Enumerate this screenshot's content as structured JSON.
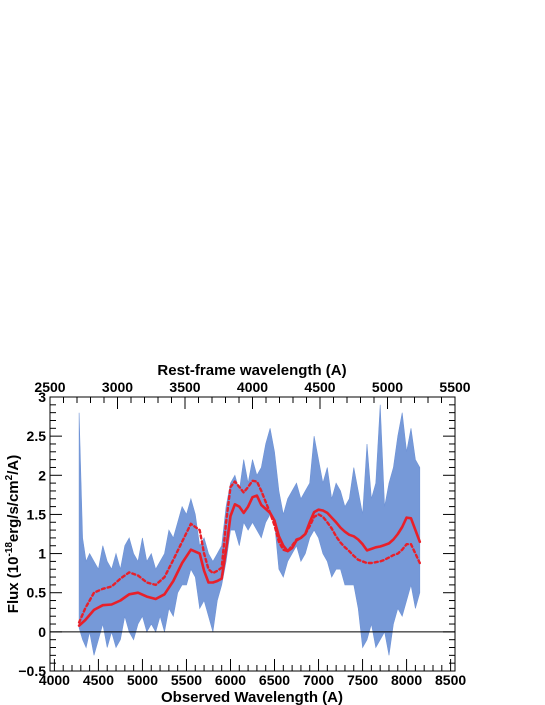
{
  "chart_data": {
    "type": "line",
    "title": "",
    "xlabel": "Observed Wavelength (A)",
    "x2label": "Rest-frame wavelength (A)",
    "ylabel_parts": {
      "main": "Flux (10",
      "exp": "-18",
      "unit": "erg/s/cm",
      "exp2": "2",
      "end": "/A)"
    },
    "xlim": [
      3950,
      8550
    ],
    "x2lim": [
      2500,
      5500
    ],
    "ylim": [
      -0.5,
      3
    ],
    "x_ticks": [
      4000,
      4500,
      5000,
      5500,
      6000,
      6500,
      7000,
      7500,
      8000,
      8500
    ],
    "x2_ticks": [
      2500,
      3000,
      3500,
      4000,
      4500,
      5000,
      5500
    ],
    "y_ticks": [
      -0.5,
      0,
      0.5,
      1,
      1.5,
      2,
      2.5,
      3
    ],
    "y_tick_labels": [
      "−0.5",
      "0",
      "0.5",
      "1",
      "1.5",
      "2",
      "2.5",
      "3"
    ],
    "zero_line": 0,
    "colors": {
      "spectrum": "#6f93d6",
      "model": "#e8202a",
      "axis": "#000000"
    },
    "series": [
      {
        "style": "filled-noisy-band",
        "x": [
          4280,
          4320,
          4360,
          4400,
          4450,
          4500,
          4550,
          4600,
          4650,
          4700,
          4750,
          4800,
          4850,
          4900,
          4950,
          5000,
          5050,
          5100,
          5150,
          5200,
          5250,
          5300,
          5350,
          5400,
          5450,
          5500,
          5550,
          5600,
          5650,
          5700,
          5750,
          5800,
          5850,
          5900,
          5950,
          6000,
          6050,
          6100,
          6150,
          6200,
          6250,
          6300,
          6350,
          6400,
          6450,
          6500,
          6550,
          6600,
          6650,
          6700,
          6750,
          6800,
          6850,
          6900,
          6950,
          7000,
          7050,
          7100,
          7150,
          7200,
          7250,
          7300,
          7350,
          7400,
          7450,
          7500,
          7550,
          7600,
          7650,
          7700,
          7750,
          7800,
          7850,
          7900,
          7950,
          8000,
          8050,
          8100,
          8150
        ],
        "upper": [
          2.8,
          1.2,
          0.9,
          1.0,
          0.9,
          0.8,
          1.1,
          0.9,
          0.8,
          1.0,
          0.8,
          1.1,
          1.2,
          1.0,
          0.9,
          1.2,
          0.9,
          1.0,
          0.8,
          0.9,
          1.0,
          1.3,
          1.2,
          1.4,
          1.6,
          1.5,
          1.7,
          1.5,
          1.1,
          1.2,
          1.0,
          0.9,
          1.0,
          1.1,
          1.6,
          1.9,
          2.0,
          1.8,
          2.2,
          1.9,
          2.2,
          2.0,
          2.1,
          2.4,
          2.6,
          2.3,
          1.8,
          1.5,
          1.7,
          1.8,
          1.9,
          1.7,
          1.8,
          1.9,
          2.5,
          2.2,
          1.9,
          2.1,
          1.7,
          1.9,
          1.8,
          1.6,
          1.7,
          2.1,
          1.8,
          1.5,
          2.4,
          1.7,
          1.9,
          2.9,
          1.6,
          1.9,
          2.1,
          2.5,
          2.8,
          2.3,
          2.6,
          2.2,
          2.1
        ],
        "lower": [
          0.05,
          -0.1,
          -0.2,
          0.0,
          -0.3,
          -0.1,
          0.1,
          -0.2,
          0.0,
          -0.2,
          -0.1,
          0.2,
          0.0,
          -0.1,
          0.1,
          0.2,
          0.0,
          0.1,
          0.0,
          0.2,
          0.0,
          0.3,
          0.2,
          0.5,
          0.6,
          0.6,
          0.8,
          0.7,
          0.3,
          0.4,
          0.2,
          0.0,
          0.4,
          0.6,
          0.9,
          1.3,
          1.3,
          1.1,
          1.4,
          1.3,
          1.4,
          1.3,
          1.2,
          1.4,
          1.5,
          1.4,
          0.8,
          0.7,
          0.9,
          1.0,
          1.1,
          0.9,
          1.0,
          1.2,
          1.3,
          1.2,
          1.0,
          0.9,
          0.7,
          0.8,
          0.8,
          0.6,
          0.6,
          0.6,
          0.3,
          -0.2,
          -0.1,
          0.1,
          -0.2,
          -0.1,
          0.0,
          -0.3,
          0.1,
          0.3,
          0.2,
          0.4,
          0.6,
          0.3,
          0.5
        ]
      },
      {
        "style": "solid",
        "x": [
          4280,
          4350,
          4450,
          4550,
          4650,
          4750,
          4850,
          4950,
          5050,
          5150,
          5250,
          5350,
          5450,
          5550,
          5650,
          5700,
          5750,
          5800,
          5850,
          5900,
          5950,
          6000,
          6050,
          6100,
          6150,
          6200,
          6250,
          6300,
          6350,
          6400,
          6450,
          6500,
          6550,
          6600,
          6650,
          6700,
          6750,
          6800,
          6850,
          6900,
          6950,
          7000,
          7050,
          7100,
          7150,
          7200,
          7250,
          7300,
          7350,
          7400,
          7450,
          7500,
          7550,
          7600,
          7650,
          7700,
          7750,
          7800,
          7850,
          7900,
          7950,
          8000,
          8050,
          8100,
          8150
        ],
        "y": [
          0.08,
          0.15,
          0.28,
          0.34,
          0.35,
          0.4,
          0.48,
          0.5,
          0.45,
          0.42,
          0.48,
          0.65,
          0.88,
          1.05,
          1.0,
          0.78,
          0.63,
          0.63,
          0.65,
          0.68,
          1.05,
          1.48,
          1.63,
          1.6,
          1.52,
          1.6,
          1.72,
          1.74,
          1.62,
          1.57,
          1.52,
          1.42,
          1.22,
          1.1,
          1.03,
          1.07,
          1.17,
          1.2,
          1.25,
          1.4,
          1.53,
          1.56,
          1.55,
          1.52,
          1.46,
          1.4,
          1.33,
          1.28,
          1.24,
          1.22,
          1.18,
          1.12,
          1.04,
          1.06,
          1.08,
          1.09,
          1.11,
          1.13,
          1.18,
          1.25,
          1.34,
          1.46,
          1.45,
          1.3,
          1.15
        ]
      },
      {
        "style": "dotted",
        "x": [
          4280,
          4350,
          4450,
          4550,
          4650,
          4750,
          4850,
          4950,
          5050,
          5150,
          5250,
          5350,
          5450,
          5550,
          5650,
          5700,
          5750,
          5800,
          5850,
          5900,
          5950,
          6000,
          6050,
          6100,
          6150,
          6200,
          6250,
          6300,
          6350,
          6400,
          6450,
          6500,
          6550,
          6600,
          6650,
          6700,
          6750,
          6800,
          6850,
          6900,
          6950,
          7000,
          7050,
          7100,
          7150,
          7200,
          7250,
          7300,
          7350,
          7400,
          7450,
          7500,
          7550,
          7600,
          7650,
          7700,
          7750,
          7800,
          7850,
          7900,
          7950,
          8000,
          8050,
          8100,
          8150
        ],
        "y": [
          0.12,
          0.3,
          0.5,
          0.55,
          0.58,
          0.68,
          0.76,
          0.72,
          0.63,
          0.6,
          0.7,
          0.92,
          1.15,
          1.38,
          1.3,
          1.0,
          0.8,
          0.75,
          0.78,
          0.82,
          1.4,
          1.85,
          1.92,
          1.85,
          1.78,
          1.85,
          1.93,
          1.92,
          1.8,
          1.66,
          1.52,
          1.36,
          1.15,
          1.05,
          1.03,
          1.1,
          1.18,
          1.2,
          1.25,
          1.35,
          1.47,
          1.5,
          1.47,
          1.4,
          1.32,
          1.22,
          1.14,
          1.08,
          1.03,
          0.97,
          0.92,
          0.9,
          0.88,
          0.88,
          0.89,
          0.9,
          0.92,
          0.95,
          0.98,
          1.0,
          1.05,
          1.12,
          1.12,
          1.0,
          0.88
        ]
      }
    ]
  }
}
